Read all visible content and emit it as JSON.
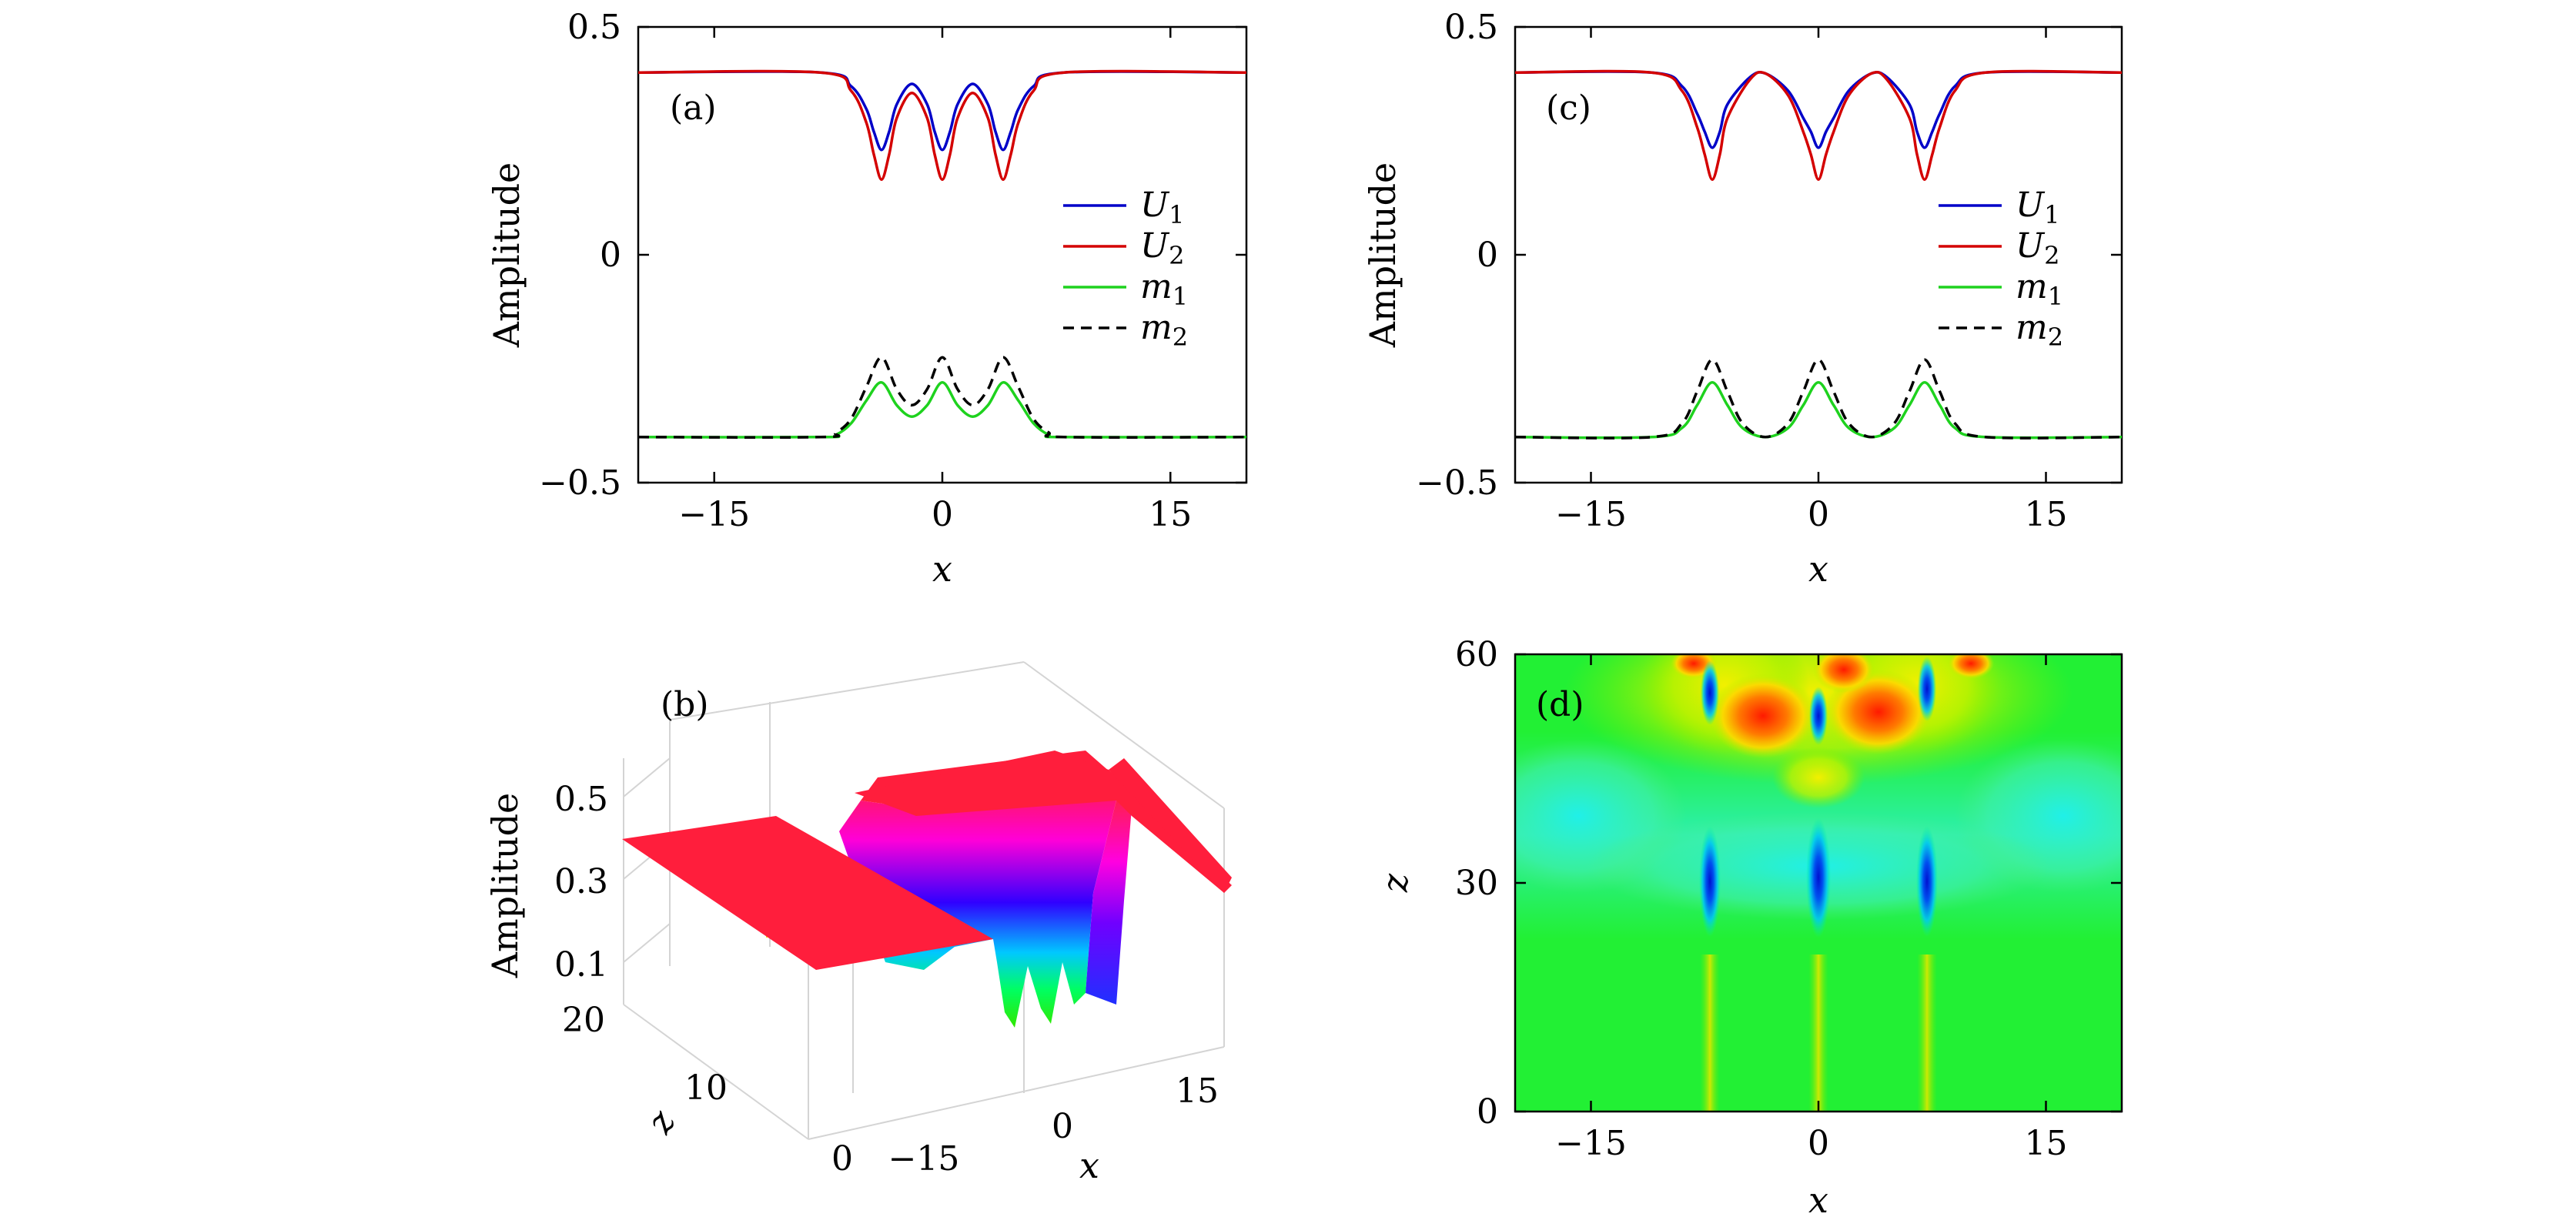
{
  "chart_data": [
    {
      "panel": "(a)",
      "type": "line",
      "xlabel": "x",
      "ylabel": "Amplitude",
      "xlim": [
        -20,
        20
      ],
      "ylim": [
        -0.5,
        0.5
      ],
      "xticks": [
        -15,
        0,
        15
      ],
      "xtick_labels": [
        "−15",
        "0",
        "15"
      ],
      "yticks": [
        -0.5,
        0,
        0.5
      ],
      "ytick_labels": [
        "−0.5",
        "0",
        "0.5"
      ],
      "legend_position": "right",
      "series": [
        {
          "name": "U",
          "subscript": "1",
          "color": "#0000c8",
          "dash": "solid",
          "x": [
            -20,
            -8,
            -6,
            -5,
            -4.5,
            -4,
            -3.5,
            -3,
            -2,
            -1,
            -0.5,
            0,
            0.5,
            1,
            2,
            3,
            3.5,
            4,
            4.5,
            5,
            6,
            8,
            20
          ],
          "y": [
            0.4,
            0.4,
            0.37,
            0.32,
            0.27,
            0.23,
            0.27,
            0.33,
            0.375,
            0.33,
            0.27,
            0.23,
            0.27,
            0.33,
            0.375,
            0.33,
            0.27,
            0.23,
            0.27,
            0.32,
            0.37,
            0.4,
            0.4
          ]
        },
        {
          "name": "U",
          "subscript": "2",
          "color": "#d40000",
          "dash": "solid",
          "x": [
            -20,
            -8,
            -6,
            -5,
            -4.5,
            -4,
            -3.5,
            -3,
            -2,
            -1,
            -0.5,
            0,
            0.5,
            1,
            2,
            3,
            3.5,
            4,
            4.5,
            5,
            6,
            8,
            20
          ],
          "y": [
            0.4,
            0.4,
            0.36,
            0.29,
            0.22,
            0.165,
            0.22,
            0.3,
            0.355,
            0.3,
            0.22,
            0.165,
            0.22,
            0.3,
            0.355,
            0.3,
            0.22,
            0.165,
            0.22,
            0.29,
            0.36,
            0.4,
            0.4
          ]
        },
        {
          "name": "m",
          "subscript": "1",
          "color": "#1ed21e",
          "dash": "solid",
          "x": [
            -20,
            -8,
            -7,
            -6,
            -5,
            -4,
            -3,
            -2,
            -1,
            0,
            1,
            2,
            3,
            4,
            5,
            6,
            7,
            8,
            20
          ],
          "y": [
            -0.4,
            -0.4,
            -0.395,
            -0.37,
            -0.32,
            -0.28,
            -0.33,
            -0.355,
            -0.33,
            -0.28,
            -0.33,
            -0.355,
            -0.33,
            -0.28,
            -0.32,
            -0.37,
            -0.395,
            -0.4,
            -0.4
          ]
        },
        {
          "name": "m",
          "subscript": "2",
          "color": "#000000",
          "dash": "dashed",
          "x": [
            -20,
            -8,
            -7,
            -6,
            -5,
            -4,
            -3,
            -2,
            -1,
            0,
            1,
            2,
            3,
            4,
            5,
            6,
            7,
            8,
            20
          ],
          "y": [
            -0.4,
            -0.4,
            -0.39,
            -0.36,
            -0.29,
            -0.225,
            -0.295,
            -0.33,
            -0.295,
            -0.225,
            -0.295,
            -0.33,
            -0.295,
            -0.225,
            -0.29,
            -0.36,
            -0.39,
            -0.4,
            -0.4
          ]
        }
      ]
    },
    {
      "panel": "(b)",
      "type": "surface",
      "xlabel": "x",
      "ylabel": "z",
      "zlabel": "Amplitude",
      "x_tick_labels": [
        "−15",
        "0",
        "15"
      ],
      "y_tick_labels": [
        "0",
        "10",
        "20"
      ],
      "z_tick_labels": [
        "0.1",
        "0.3",
        "0.5"
      ]
    },
    {
      "panel": "(c)",
      "type": "line",
      "xlabel": "x",
      "ylabel": "Amplitude",
      "xlim": [
        -20,
        20
      ],
      "ylim": [
        -0.5,
        0.5
      ],
      "xticks": [
        -15,
        0,
        15
      ],
      "xtick_labels": [
        "−15",
        "0",
        "15"
      ],
      "yticks": [
        -0.5,
        0,
        0.5
      ],
      "ytick_labels": [
        "−0.5",
        "0",
        "0.5"
      ],
      "legend_position": "right",
      "series": [
        {
          "name": "U",
          "subscript": "1",
          "color": "#0000c8",
          "dash": "solid",
          "x": [
            -20,
            -11,
            -9,
            -8,
            -7.5,
            -7,
            -6.5,
            -6,
            -4.5,
            -3.5,
            -2,
            -1,
            -0.5,
            0,
            0.5,
            1,
            2,
            3.5,
            4.5,
            6,
            6.5,
            7,
            7.5,
            8,
            9,
            11,
            20
          ],
          "y": [
            0.4,
            0.4,
            0.37,
            0.31,
            0.27,
            0.235,
            0.27,
            0.33,
            0.39,
            0.398,
            0.36,
            0.3,
            0.27,
            0.235,
            0.27,
            0.3,
            0.36,
            0.398,
            0.39,
            0.33,
            0.27,
            0.235,
            0.27,
            0.31,
            0.37,
            0.4,
            0.4
          ]
        },
        {
          "name": "U",
          "subscript": "2",
          "color": "#d40000",
          "dash": "solid",
          "x": [
            -20,
            -11,
            -9,
            -8,
            -7.5,
            -7,
            -6.5,
            -6,
            -4.5,
            -3.5,
            -2,
            -1,
            -0.5,
            0,
            0.5,
            1,
            2,
            3.5,
            4.5,
            6,
            6.5,
            7,
            7.5,
            8,
            9,
            11,
            20
          ],
          "y": [
            0.4,
            0.4,
            0.36,
            0.28,
            0.22,
            0.165,
            0.22,
            0.3,
            0.385,
            0.398,
            0.35,
            0.27,
            0.22,
            0.165,
            0.22,
            0.27,
            0.35,
            0.398,
            0.385,
            0.3,
            0.22,
            0.165,
            0.22,
            0.28,
            0.36,
            0.4,
            0.4
          ]
        },
        {
          "name": "m",
          "subscript": "1",
          "color": "#1ed21e",
          "dash": "solid",
          "x": [
            -20,
            -11,
            -9,
            -8,
            -7,
            -6,
            -5,
            -3.5,
            -2,
            -1,
            0,
            1,
            2,
            3.5,
            5,
            6,
            7,
            8,
            9,
            11,
            20
          ],
          "y": [
            -0.4,
            -0.4,
            -0.38,
            -0.33,
            -0.28,
            -0.33,
            -0.38,
            -0.4,
            -0.38,
            -0.33,
            -0.28,
            -0.33,
            -0.38,
            -0.4,
            -0.38,
            -0.33,
            -0.28,
            -0.33,
            -0.38,
            -0.4,
            -0.4
          ]
        },
        {
          "name": "m",
          "subscript": "2",
          "color": "#000000",
          "dash": "dashed",
          "x": [
            -20,
            -11,
            -9,
            -8,
            -7,
            -6,
            -5,
            -3.5,
            -2,
            -1,
            0,
            1,
            2,
            3.5,
            5,
            6,
            7,
            8,
            9,
            11,
            20
          ],
          "y": [
            -0.4,
            -0.4,
            -0.37,
            -0.3,
            -0.23,
            -0.3,
            -0.37,
            -0.4,
            -0.37,
            -0.3,
            -0.23,
            -0.3,
            -0.37,
            -0.4,
            -0.37,
            -0.3,
            -0.23,
            -0.3,
            -0.37,
            -0.4,
            -0.4
          ]
        }
      ]
    },
    {
      "panel": "(d)",
      "type": "heatmap",
      "xlabel": "x",
      "ylabel": "z",
      "xlim": [
        -20,
        20
      ],
      "ylim": [
        0,
        60
      ],
      "xticks": [
        -15,
        0,
        15
      ],
      "xtick_labels": [
        "−15",
        "0",
        "15"
      ],
      "yticks": [
        0,
        30,
        60
      ],
      "ytick_labels": [
        "0",
        "30",
        "60"
      ]
    }
  ]
}
